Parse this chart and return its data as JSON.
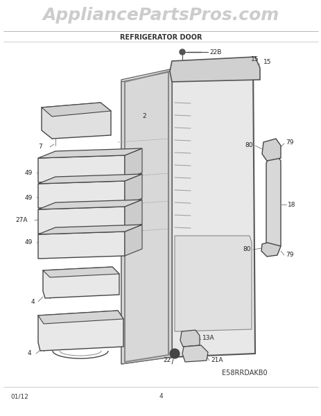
{
  "bg_color": "#ffffff",
  "line_color": "#444444",
  "title_text": "REFRIGERATOR DOOR",
  "watermark_text": "AppliancePartsPros.com",
  "diagram_code": "E58RRDAKB0",
  "footer_left": "01/12",
  "footer_center": "4"
}
